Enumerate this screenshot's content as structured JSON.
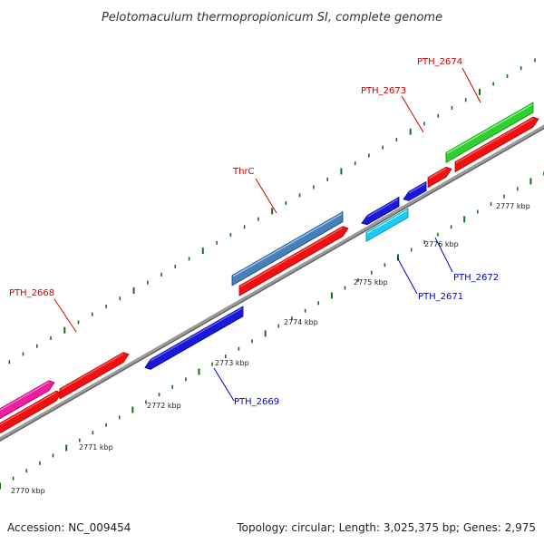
{
  "title": "Pelotomaculum thermopropionicum SI, complete genome",
  "footer": {
    "accession": "Accession: NC_009454",
    "summary": "Topology: circular; Length: 3,025,375 bp; Genes: 2,975"
  },
  "colors": {
    "forward_label": "#cc0000",
    "reverse_label": "#0000cc",
    "tick": "#1a6b1a",
    "backbone": "#888888"
  },
  "kbp_markers": [
    "2770 kbp",
    "2771 kbp",
    "2772 kbp",
    "2773 kbp",
    "2774 kbp",
    "2775 kbp",
    "2776 kbp",
    "2777 kbp"
  ],
  "gene_labels": {
    "pth2668": "PTH_2668",
    "thrc": "ThrC",
    "pth2673": "PTH_2673",
    "pth2674": "PTH_2674",
    "pth2669": "PTH_2669",
    "pth2671": "PTH_2671",
    "pth2672": "PTH_2672"
  },
  "features": [
    {
      "id": "pink-gene",
      "strand": "+",
      "color": "#e8209a"
    },
    {
      "id": "red-cds-1",
      "strand": "+",
      "color": "#ee1111"
    },
    {
      "id": "red-cds-2",
      "strand": "+",
      "color": "#ee1111"
    },
    {
      "id": "red-cds-3",
      "strand": "+",
      "color": "#ee1111"
    },
    {
      "id": "red-cds-4",
      "strand": "+",
      "color": "#ee1111"
    },
    {
      "id": "red-cds-5",
      "strand": "+",
      "color": "#ee1111"
    },
    {
      "id": "thrc-gene",
      "strand": "+",
      "color": "#4a7fb5"
    },
    {
      "id": "pth2674-gene",
      "strand": "+",
      "color": "#33cc33"
    },
    {
      "id": "pth2669-cds",
      "strand": "-",
      "color": "#1a1ad6"
    },
    {
      "id": "pth2671-cds",
      "strand": "-",
      "color": "#1a1ad6"
    },
    {
      "id": "pth2671-gene",
      "strand": "-",
      "color": "#22c8f0"
    },
    {
      "id": "pth2672-cds",
      "strand": "-",
      "color": "#1a1ad6"
    }
  ]
}
